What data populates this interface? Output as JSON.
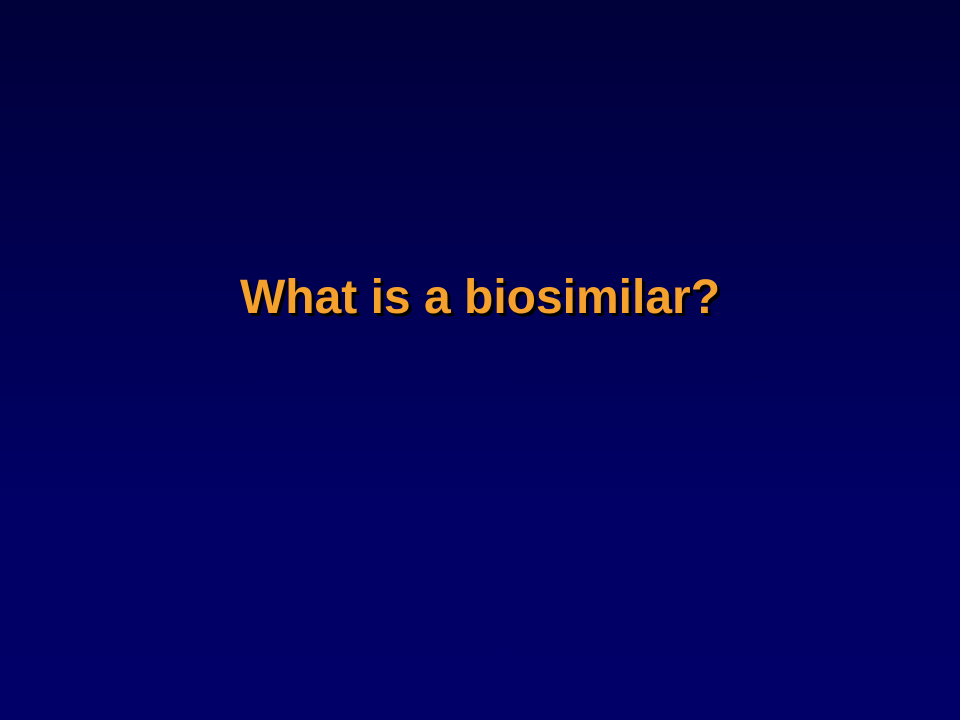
{
  "slide": {
    "title": "What is a biosimilar?"
  },
  "colors": {
    "background_top": "#00003a",
    "background_bottom": "#000068",
    "title_text": "#F5A12D",
    "title_shadow": "#000000"
  }
}
